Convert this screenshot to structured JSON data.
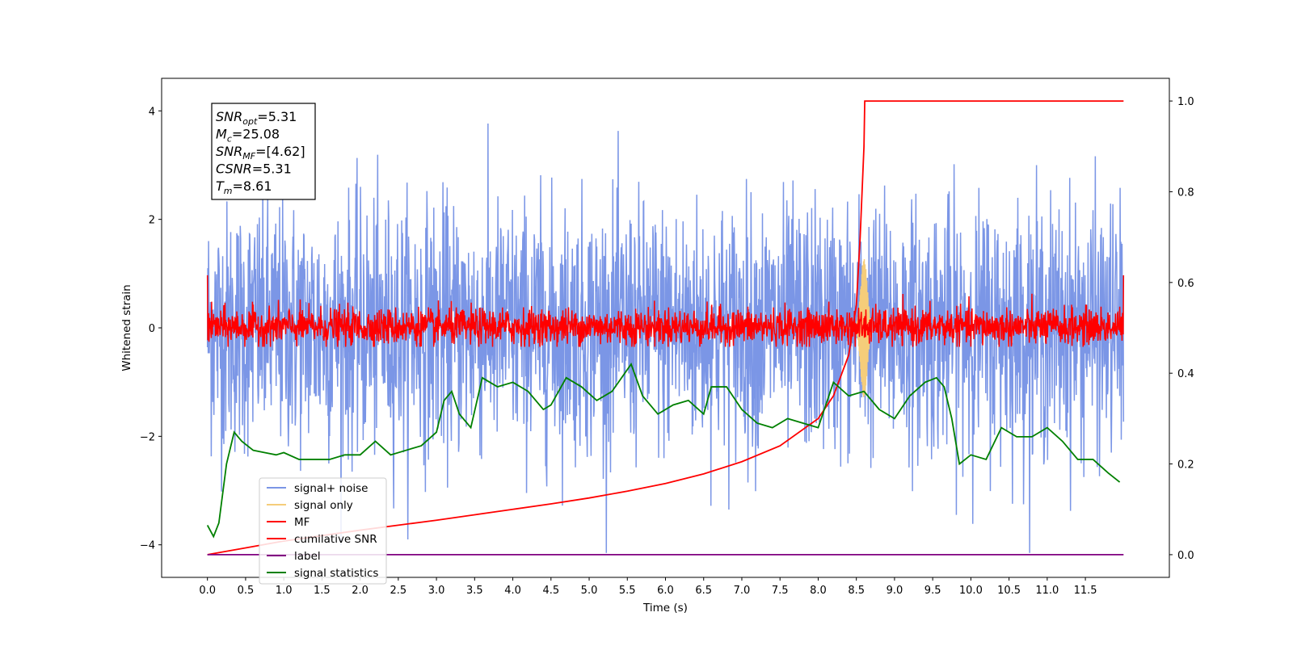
{
  "chart_data": {
    "type": "line",
    "xlabel": "Time (s)",
    "ylabel": "Whitened strain",
    "xlim": [
      -0.6,
      12.6
    ],
    "ylim": [
      -4.6,
      4.6
    ],
    "ylim_right": [
      -0.05,
      1.05
    ],
    "x_ticks": [
      "0.0",
      "0.5",
      "1.0",
      "1.5",
      "2.0",
      "2.5",
      "3.0",
      "3.5",
      "4.0",
      "4.5",
      "5.0",
      "5.5",
      "6.0",
      "6.5",
      "7.0",
      "7.5",
      "8.0",
      "8.5",
      "9.0",
      "9.5",
      "10.0",
      "10.5",
      "11.0",
      "11.5"
    ],
    "y_ticks_left": [
      "4",
      "2",
      "0",
      "−2",
      "−4"
    ],
    "y_ticks_right": [
      "1.0",
      "0.8",
      "0.6",
      "0.4",
      "0.2",
      "0.0"
    ],
    "annotation": [
      {
        "base": "SNR",
        "sub": "opt",
        "text": "=5.31"
      },
      {
        "base": "M",
        "sub": "c",
        "text": "=25.08"
      },
      {
        "base": "SNR",
        "sub": "MF",
        "text": "=[4.62]"
      },
      {
        "base": "CSNR",
        "sub": "",
        "text": "=5.31"
      },
      {
        "base": "T",
        "sub": "m",
        "text": "=8.61"
      }
    ],
    "legend_position": "bottom-left",
    "series": [
      {
        "name": "signal+ noise",
        "color": "#7b96e6",
        "axis": "left",
        "description": "noise centered ~0, range about -4.2 to 4.2, t 0 to 12"
      },
      {
        "name": "signal only",
        "color": "#f5cd7a",
        "axis": "left",
        "description": "chirp peaking near t=8.6"
      },
      {
        "name": "MF",
        "color": "#ff0000",
        "axis": "left",
        "description": "matched-filter output fluctuating about 0, range about -0.4 to 1.0"
      },
      {
        "name": "cumilative SNR",
        "color": "#ff0000",
        "axis": "right",
        "x": [
          0.0,
          0.5,
          1.0,
          1.5,
          2.0,
          2.5,
          3.0,
          3.5,
          4.0,
          4.5,
          5.0,
          5.5,
          6.0,
          6.5,
          7.0,
          7.5,
          8.0,
          8.2,
          8.4,
          8.5,
          8.55,
          8.6,
          8.61,
          9.0,
          10.0,
          11.0,
          12.0
        ],
        "values": [
          0.0,
          0.015,
          0.03,
          0.042,
          0.054,
          0.065,
          0.076,
          0.088,
          0.1,
          0.112,
          0.125,
          0.14,
          0.157,
          0.178,
          0.205,
          0.24,
          0.3,
          0.35,
          0.44,
          0.55,
          0.7,
          0.9,
          1.0,
          1.0,
          1.0,
          1.0,
          1.0
        ]
      },
      {
        "name": "label",
        "color": "#800080",
        "axis": "right",
        "x": [
          0.0,
          12.0
        ],
        "values": [
          0.0,
          0.0
        ]
      },
      {
        "name": "signal statistics",
        "color": "#008000",
        "axis": "right",
        "x": [
          0.0,
          0.08,
          0.15,
          0.25,
          0.35,
          0.45,
          0.6,
          0.75,
          0.9,
          1.0,
          1.2,
          1.4,
          1.6,
          1.8,
          2.0,
          2.2,
          2.4,
          2.6,
          2.8,
          3.0,
          3.1,
          3.2,
          3.3,
          3.45,
          3.6,
          3.7,
          3.8,
          4.0,
          4.2,
          4.4,
          4.5,
          4.7,
          4.9,
          5.1,
          5.3,
          5.55,
          5.7,
          5.9,
          6.1,
          6.3,
          6.5,
          6.6,
          6.8,
          7.0,
          7.2,
          7.4,
          7.6,
          7.8,
          8.0,
          8.2,
          8.4,
          8.6,
          8.8,
          9.0,
          9.2,
          9.4,
          9.55,
          9.65,
          9.75,
          9.85,
          10.0,
          10.2,
          10.4,
          10.6,
          10.8,
          11.0,
          11.2,
          11.4,
          11.6,
          11.8,
          11.95
        ],
        "values": [
          0.065,
          0.04,
          0.07,
          0.2,
          0.27,
          0.25,
          0.23,
          0.225,
          0.22,
          0.225,
          0.21,
          0.21,
          0.21,
          0.22,
          0.22,
          0.25,
          0.22,
          0.23,
          0.24,
          0.27,
          0.34,
          0.36,
          0.31,
          0.28,
          0.39,
          0.38,
          0.37,
          0.38,
          0.36,
          0.32,
          0.33,
          0.39,
          0.37,
          0.34,
          0.36,
          0.42,
          0.35,
          0.31,
          0.33,
          0.34,
          0.31,
          0.37,
          0.37,
          0.32,
          0.29,
          0.28,
          0.3,
          0.29,
          0.28,
          0.38,
          0.35,
          0.36,
          0.32,
          0.3,
          0.35,
          0.38,
          0.39,
          0.37,
          0.3,
          0.2,
          0.22,
          0.21,
          0.28,
          0.26,
          0.26,
          0.28,
          0.25,
          0.21,
          0.21,
          0.18,
          0.16
        ]
      }
    ]
  }
}
